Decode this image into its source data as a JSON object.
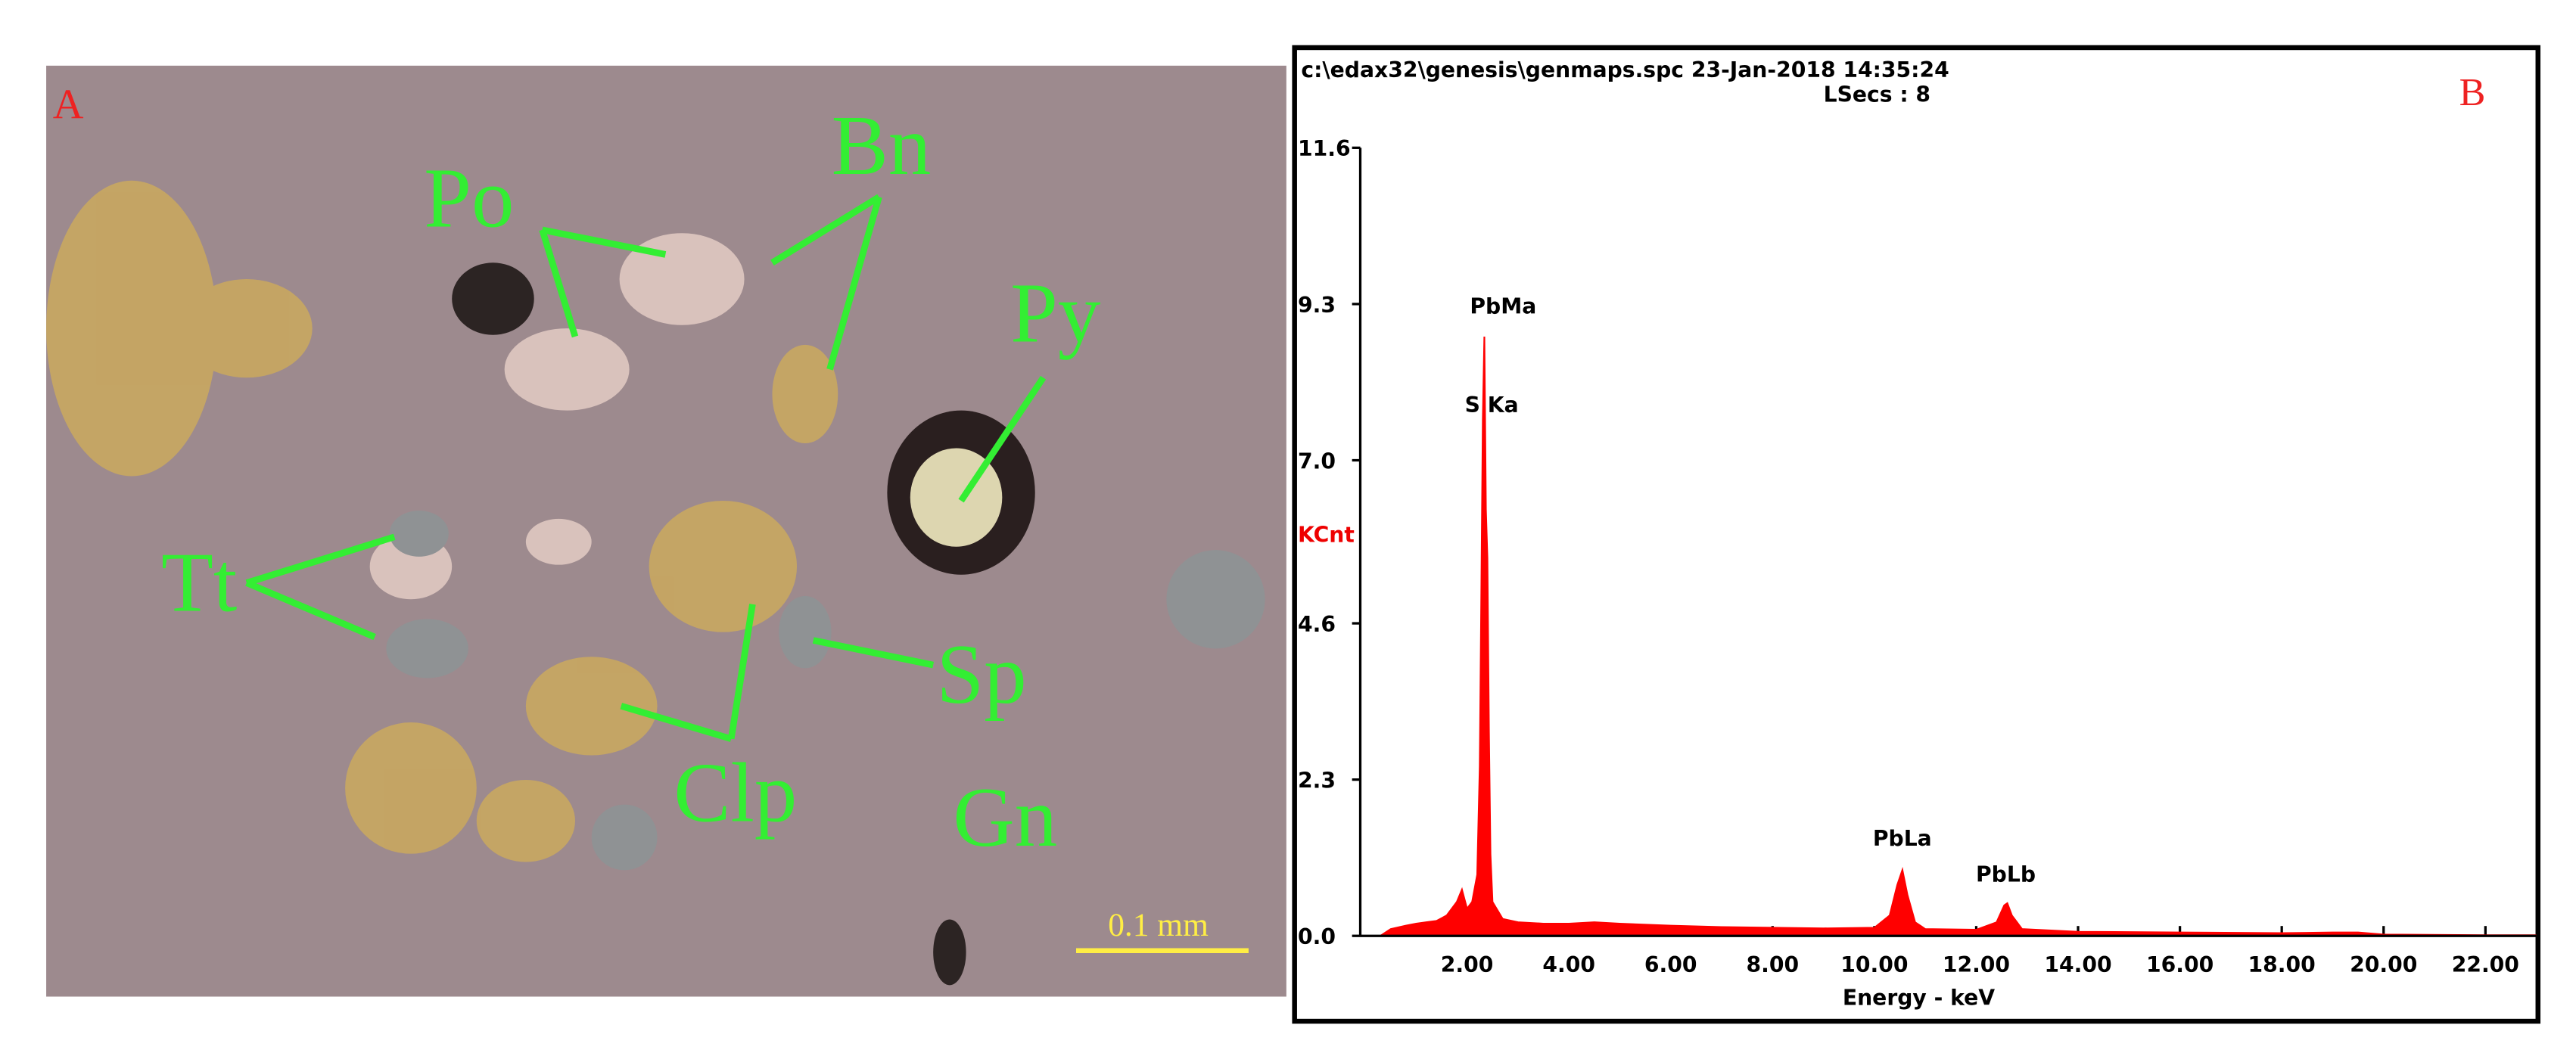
{
  "micrograph": {
    "panel_label": "A",
    "mineral_labels": [
      "Po",
      "Bn",
      "Py",
      "Tt",
      "Sp",
      "Clp",
      "Gn"
    ],
    "scale_bar": "0.1 mm"
  },
  "chart_data": {
    "type": "area",
    "panel_label": "B",
    "header": "c:\\edax32\\genesis\\genmaps.spc  23-Jan-2018 14:35:24",
    "subheader": "LSecs :  8",
    "y_label": "KCnt",
    "x_label": "Energy - keV",
    "annotations": [
      "PbMa",
      "S Ka",
      "PbLa",
      "PbLb"
    ],
    "color": "#ff0000",
    "x": [
      0.3,
      0.5,
      0.8,
      1.0,
      1.2,
      1.4,
      1.6,
      1.8,
      1.9,
      2.0,
      2.1,
      2.2,
      2.25,
      2.28,
      2.31,
      2.34,
      2.37,
      2.4,
      2.43,
      2.46,
      2.5,
      2.7,
      3.0,
      3.5,
      4.0,
      4.5,
      5.0,
      6.0,
      7.0,
      8.0,
      9.0,
      10.0,
      10.3,
      10.45,
      10.55,
      10.65,
      10.8,
      11.0,
      12.0,
      12.4,
      12.55,
      12.61,
      12.7,
      12.9,
      14.0,
      16.0,
      18.0,
      19.0,
      19.5,
      20.0,
      22.0,
      23.0
    ],
    "values": [
      0.0,
      0.1,
      0.15,
      0.18,
      0.2,
      0.22,
      0.3,
      0.5,
      0.68,
      0.4,
      0.5,
      0.9,
      2.5,
      5.0,
      7.6,
      8.82,
      6.28,
      5.56,
      3.0,
      1.2,
      0.5,
      0.25,
      0.2,
      0.18,
      0.18,
      0.2,
      0.18,
      0.15,
      0.13,
      0.12,
      0.11,
      0.12,
      0.3,
      0.75,
      0.97,
      0.6,
      0.2,
      0.1,
      0.09,
      0.2,
      0.45,
      0.48,
      0.3,
      0.1,
      0.06,
      0.05,
      0.04,
      0.05,
      0.05,
      0.02,
      0.01,
      0.01
    ],
    "xlim": [
      0,
      23
    ],
    "ylim": [
      0,
      11.6
    ],
    "xticks": [
      {
        "value": 2,
        "label": "2.00"
      },
      {
        "value": 4,
        "label": "4.00"
      },
      {
        "value": 6,
        "label": "6.00"
      },
      {
        "value": 8,
        "label": "8.00"
      },
      {
        "value": 10,
        "label": "10.00"
      },
      {
        "value": 12,
        "label": "12.00"
      },
      {
        "value": 14,
        "label": "14.00"
      },
      {
        "value": 16,
        "label": "16.00"
      },
      {
        "value": 18,
        "label": "18.00"
      },
      {
        "value": 20,
        "label": "20.00"
      },
      {
        "value": 22,
        "label": "22.00"
      }
    ],
    "yticks": [
      {
        "value": 0,
        "label": "0.0"
      },
      2.3,
      4.6,
      {
        "value": 7,
        "label": "7.0"
      },
      9.3,
      11.6
    ]
  }
}
